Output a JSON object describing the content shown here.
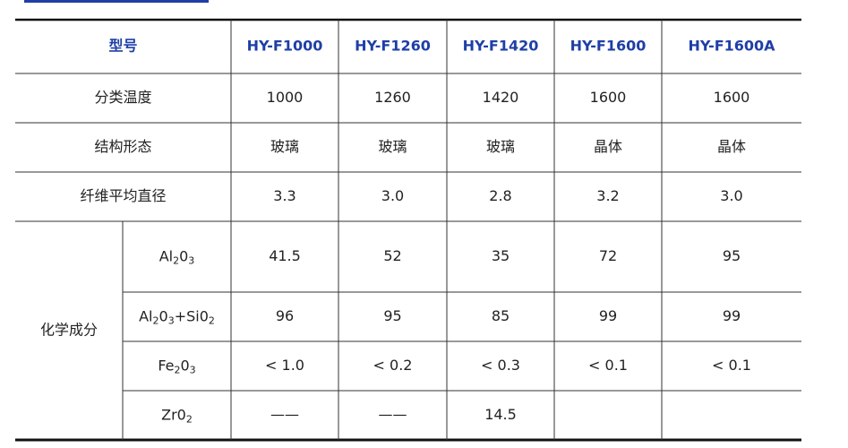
{
  "table": {
    "header": [
      "型号",
      "HY-F1000",
      "HY-F1260",
      "HY-F1420",
      "HY-F1600",
      "HY-F1600A"
    ],
    "rows": [
      {
        "label": "分类温度",
        "values": [
          "1000",
          "1260",
          "1420",
          "1600",
          "1600"
        ]
      },
      {
        "label": "结构形态",
        "values": [
          "玻璃",
          "玻璃",
          "玻璃",
          "晶体",
          "晶体"
        ]
      },
      {
        "label": "纤维平均直径",
        "values": [
          "3.3",
          "3.0",
          "2.8",
          "3.2",
          "3.0"
        ]
      }
    ],
    "group": {
      "label": "化学成分",
      "rows": [
        {
          "label": [
            {
              "text": "Al"
            },
            {
              "text": "2",
              "sub": true
            },
            {
              "text": "0"
            },
            {
              "text": "3",
              "sub": true
            }
          ],
          "values": [
            "41.5",
            "52",
            "35",
            "72",
            "95"
          ]
        },
        {
          "label": [
            {
              "text": "Al"
            },
            {
              "text": "2",
              "sub": true
            },
            {
              "text": "0"
            },
            {
              "text": "3",
              "sub": true
            },
            {
              "text": "+Si0"
            },
            {
              "text": "2",
              "sub": true
            }
          ],
          "values": [
            "96",
            "95",
            "85",
            "99",
            "99"
          ]
        },
        {
          "label": [
            {
              "text": "Fe"
            },
            {
              "text": "2",
              "sub": true
            },
            {
              "text": "0"
            },
            {
              "text": "3",
              "sub": true
            }
          ],
          "values": [
            "< 1.0",
            "< 0.2",
            "< 0.3",
            "< 0.1",
            "< 0.1"
          ]
        },
        {
          "label": [
            {
              "text": "Zr0"
            },
            {
              "text": "2",
              "sub": true
            }
          ],
          "values": [
            "——",
            "——",
            "14.5",
            null,
            null
          ]
        }
      ]
    }
  }
}
